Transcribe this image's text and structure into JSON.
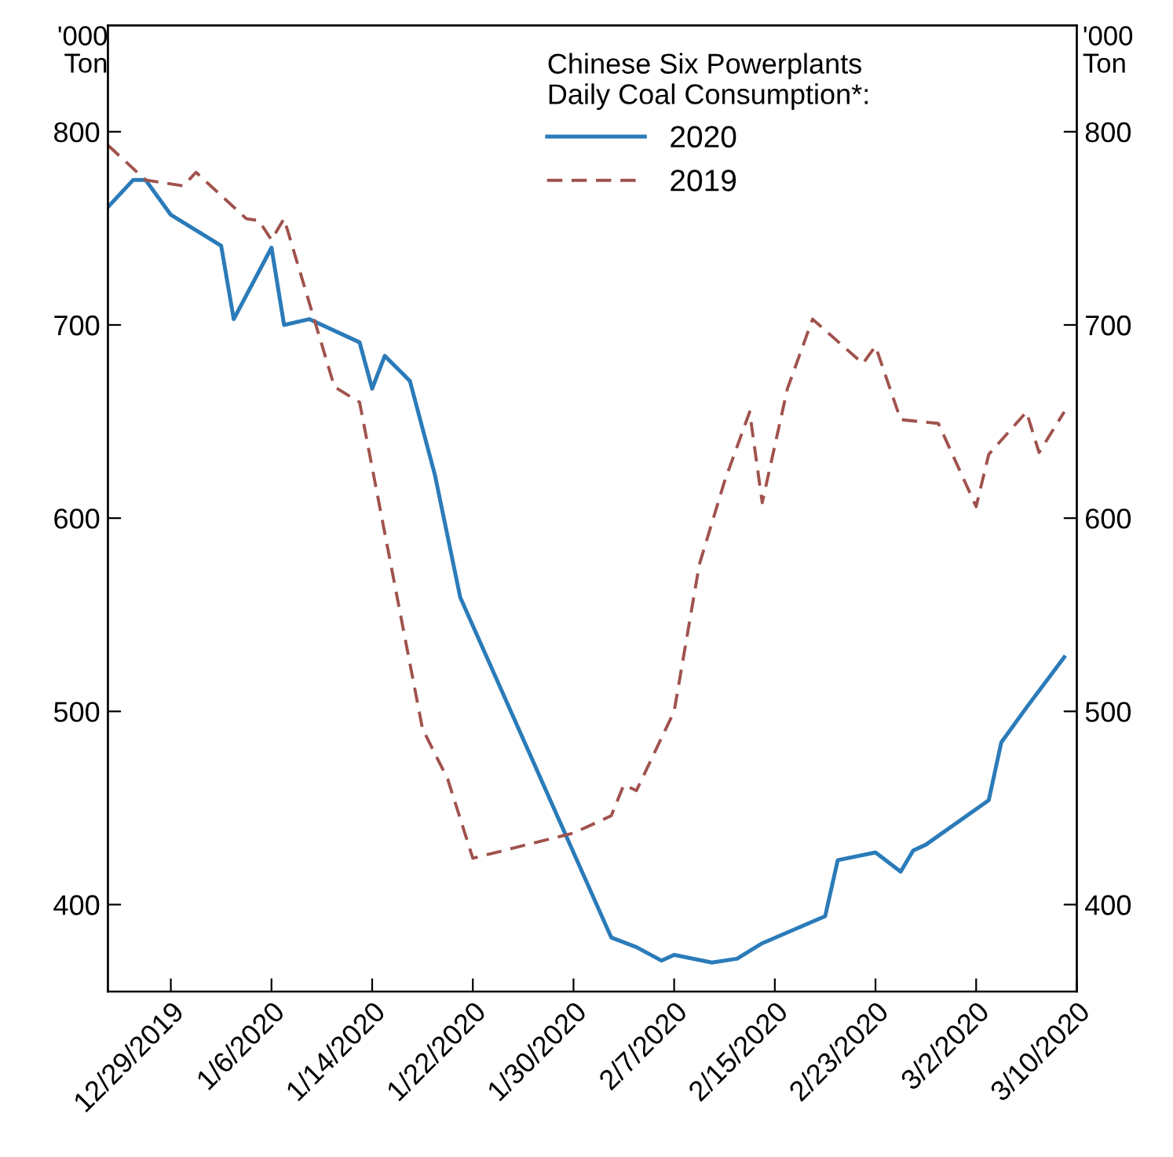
{
  "chart_data": {
    "type": "line",
    "legend_title": "Chinese Six Powerplants\nDaily Coal Consumption*:",
    "ylabel": "'000\nTon",
    "y2label": "'000\nTon",
    "series": [
      {
        "name": "2020",
        "color": "#2b7bb9",
        "line_style": "solid",
        "x": [
          "2019-12-24",
          "2019-12-26",
          "2019-12-27",
          "2019-12-29",
          "2019-12-31",
          "2020-01-02",
          "2020-01-03",
          "2020-01-06",
          "2020-01-07",
          "2020-01-09",
          "2020-01-13",
          "2020-01-14",
          "2020-01-15",
          "2020-01-17",
          "2020-01-19",
          "2020-01-21",
          "2020-02-02",
          "2020-02-04",
          "2020-02-06",
          "2020-02-07",
          "2020-02-10",
          "2020-02-12",
          "2020-02-14",
          "2020-02-19",
          "2020-02-20",
          "2020-02-23",
          "2020-02-25",
          "2020-02-26",
          "2020-02-27",
          "2020-03-03",
          "2020-03-04",
          "2020-03-06",
          "2020-03-09"
        ],
        "values": [
          761,
          775,
          775,
          757,
          749,
          741,
          703,
          740,
          700,
          703,
          691,
          667,
          684,
          671,
          622,
          559,
          383,
          378,
          371,
          374,
          370,
          372,
          380,
          394,
          423,
          427,
          417,
          428,
          431,
          454,
          484,
          502,
          528
        ]
      },
      {
        "name": "2019",
        "color": "#a0524d",
        "line_style": "dashed",
        "x": [
          "2019-12-24",
          "2019-12-27",
          "2019-12-30",
          "2019-12-31",
          "2020-01-04",
          "2020-01-05",
          "2020-01-06",
          "2020-01-07",
          "2020-01-11",
          "2020-01-13",
          "2020-01-18",
          "2020-01-20",
          "2020-01-22",
          "2020-01-30",
          "2020-02-02",
          "2020-02-03",
          "2020-02-04",
          "2020-02-07",
          "2020-02-09",
          "2020-02-11",
          "2020-02-13",
          "2020-02-14",
          "2020-02-16",
          "2020-02-18",
          "2020-02-22",
          "2020-02-23",
          "2020-02-25",
          "2020-02-28",
          "2020-03-02",
          "2020-03-03",
          "2020-03-06",
          "2020-03-07",
          "2020-03-09"
        ],
        "values": [
          793,
          775,
          772,
          779,
          755,
          754,
          744,
          755,
          668,
          660,
          491,
          465,
          424,
          437,
          446,
          462,
          459,
          500,
          576,
          619,
          655,
          608,
          667,
          703,
          680,
          689,
          651,
          649,
          606,
          633,
          655,
          634,
          655
        ]
      }
    ],
    "xlim": [
      "2019-12-24",
      "2020-03-10"
    ],
    "xticks": [
      {
        "value": "2019-12-29",
        "label": "12/29/2019"
      },
      {
        "value": "2020-01-06",
        "label": "1/6/2020"
      },
      {
        "value": "2020-01-14",
        "label": "1/14/2020"
      },
      {
        "value": "2020-01-22",
        "label": "1/22/2020"
      },
      {
        "value": "2020-01-30",
        "label": "1/30/2020"
      },
      {
        "value": "2020-02-07",
        "label": "2/7/2020"
      },
      {
        "value": "2020-02-15",
        "label": "2/15/2020"
      },
      {
        "value": "2020-02-23",
        "label": "2/23/2020"
      },
      {
        "value": "2020-03-02",
        "label": "3/2/2020"
      },
      {
        "value": "2020-03-10",
        "label": "3/10/2020"
      }
    ],
    "ylim": [
      355,
      855
    ],
    "yticks": [
      400,
      500,
      600,
      700,
      800
    ],
    "y2lim": [
      355,
      855
    ],
    "y2ticks": [
      400,
      500,
      600,
      700,
      800
    ],
    "grid": false,
    "legend": "top",
    "marker": "none"
  }
}
